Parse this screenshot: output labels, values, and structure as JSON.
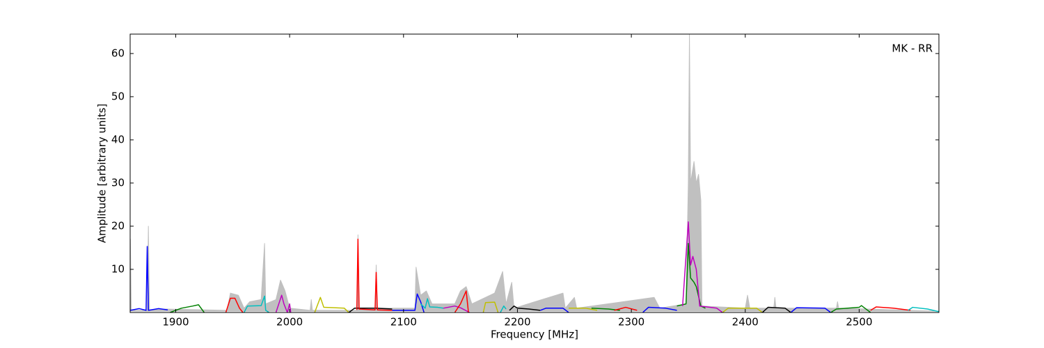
{
  "chart_data": {
    "type": "line",
    "annotation": "MK - RR",
    "x_label": "Frequency [MHz]",
    "y_label": "Amplitude [arbitrary units]",
    "xlim": [
      1860,
      2570
    ],
    "ylim": [
      0,
      64.5
    ],
    "xticks": [
      1900,
      2000,
      2100,
      2200,
      2300,
      2400,
      2500
    ],
    "yticks": [
      10,
      20,
      30,
      40,
      50,
      60
    ],
    "series": [
      {
        "color": "#c0c0c0",
        "style": "area",
        "x": [
          1860,
          1860.2,
          1861,
          1875,
          1876,
          1877,
          1890,
          1945,
          1948,
          1955,
          1960,
          1965,
          1975,
          1978,
          1979,
          1988,
          1992,
          1996,
          2000,
          2018,
          2019,
          2020,
          2059,
          2060,
          2061,
          2075,
          2076,
          2077,
          2110,
          2111,
          2115,
          2120,
          2125,
          2145,
          2150,
          2155,
          2160,
          2180,
          2187,
          2190,
          2195,
          2197,
          2240,
          2242,
          2250,
          2252,
          2320,
          2325,
          2348,
          2350,
          2351,
          2352,
          2355,
          2357,
          2359,
          2361,
          2362,
          2400,
          2402,
          2404,
          2425,
          2426,
          2427,
          2480,
          2481,
          2482,
          2570
        ],
        "values": [
          0.3,
          17,
          0.5,
          0.5,
          20,
          0.5,
          0.8,
          0.5,
          4.5,
          4,
          1,
          2.5,
          3,
          16,
          2,
          3,
          7.5,
          5,
          1,
          0.5,
          3,
          0.5,
          0.5,
          18,
          1,
          1,
          11,
          1,
          1,
          10.5,
          4,
          5,
          2,
          2,
          5,
          6,
          2,
          4.5,
          9.5,
          2,
          7,
          1,
          4.5,
          1,
          3.5,
          1,
          3.5,
          1,
          2,
          30,
          64.5,
          30,
          35,
          30,
          32,
          26,
          1.5,
          1,
          4,
          1,
          1,
          3.5,
          1,
          1,
          2.5,
          1,
          0.3
        ]
      },
      {
        "color": "#0000ff",
        "x": [
          1860,
          1868,
          1874,
          1875,
          1876,
          1885,
          1893
        ],
        "values": [
          0.5,
          0.9,
          0.5,
          15.3,
          0.5,
          0.9,
          0.6
        ]
      },
      {
        "color": "#008000",
        "x": [
          1895,
          1905,
          1915,
          1920,
          1925
        ],
        "values": [
          0,
          1,
          1.5,
          1.8,
          0
        ]
      },
      {
        "color": "#ff0000",
        "x": [
          1944,
          1948,
          1952,
          1956,
          1959
        ],
        "values": [
          0,
          3.3,
          3.3,
          1,
          0
        ]
      },
      {
        "color": "#00bfbf",
        "x": [
          1960,
          1963,
          1975,
          1978,
          1979,
          1982
        ],
        "values": [
          0,
          1.5,
          1.6,
          3.8,
          0.5,
          0
        ]
      },
      {
        "color": "#bf00bf",
        "x": [
          1988,
          1993,
          1995,
          1998,
          2000,
          2001
        ],
        "values": [
          0,
          4,
          2,
          0,
          2,
          0
        ]
      },
      {
        "color": "#bfbf00",
        "x": [
          2022,
          2027,
          2030,
          2048,
          2052
        ],
        "values": [
          0,
          3.5,
          1.2,
          1,
          0
        ]
      },
      {
        "color": "#000000",
        "x": [
          2052,
          2057,
          2075,
          2090
        ],
        "values": [
          0,
          1,
          1,
          0.8
        ]
      },
      {
        "color": "#ff0000",
        "x": [
          2059,
          2060,
          2061,
          2075,
          2076,
          2077,
          2090
        ],
        "values": [
          0.6,
          17,
          0.8,
          0.6,
          9.3,
          0.6,
          0.5
        ]
      },
      {
        "color": "#0000ff",
        "x": [
          2090,
          2110,
          2112,
          2115,
          2118
        ],
        "values": [
          0.5,
          0.5,
          4.3,
          2.5,
          0
        ]
      },
      {
        "color": "#00bfbf",
        "x": [
          2115,
          2119,
          2121,
          2123,
          2130,
          2135
        ],
        "values": [
          2,
          1,
          3.2,
          1.3,
          1.2,
          1
        ]
      },
      {
        "color": "#bf00bf",
        "x": [
          2135,
          2145,
          2150,
          2158
        ],
        "values": [
          1,
          1.5,
          1.1,
          0
        ]
      },
      {
        "color": "#ff0000",
        "x": [
          2145,
          2150,
          2155,
          2157
        ],
        "values": [
          0,
          2,
          5,
          0
        ]
      },
      {
        "color": "#bfbf00",
        "x": [
          2170,
          2172,
          2180,
          2183
        ],
        "values": [
          0,
          2.3,
          2.4,
          0
        ]
      },
      {
        "color": "#00bfbf",
        "x": [
          2185,
          2188,
          2190
        ],
        "values": [
          0,
          1.5,
          0.8
        ]
      },
      {
        "color": "#000000",
        "x": [
          2193,
          2197,
          2200,
          2210,
          2220
        ],
        "values": [
          0.5,
          1.5,
          1,
          0.8,
          0.5
        ]
      },
      {
        "color": "#0000ff",
        "x": [
          2220,
          2225,
          2240,
          2245
        ],
        "values": [
          0.5,
          1,
          1,
          0
        ]
      },
      {
        "color": "#bfbf00",
        "x": [
          2245,
          2260,
          2270
        ],
        "values": [
          1,
          1,
          0.5
        ]
      },
      {
        "color": "#008000",
        "x": [
          2265,
          2280,
          2290
        ],
        "values": [
          1,
          0.8,
          0.5
        ]
      },
      {
        "color": "#ff0000",
        "x": [
          2285,
          2295,
          2305
        ],
        "values": [
          0.5,
          1.2,
          0.5
        ]
      },
      {
        "color": "#0000ff",
        "x": [
          2310,
          2315,
          2330,
          2340
        ],
        "values": [
          0,
          1.2,
          1,
          0.5
        ]
      },
      {
        "color": "#008000",
        "x": [
          2340,
          2348,
          2350,
          2352,
          2355,
          2357,
          2361,
          2365
        ],
        "values": [
          1.5,
          2,
          16,
          8,
          7,
          6,
          1.5,
          1
        ]
      },
      {
        "color": "#bf00bf",
        "x": [
          2345,
          2350,
          2352,
          2354,
          2357,
          2360,
          2375,
          2380
        ],
        "values": [
          1.5,
          21,
          11,
          13,
          10,
          1.5,
          1,
          0
        ]
      },
      {
        "color": "#bfbf00",
        "x": [
          2380,
          2385,
          2410,
          2415
        ],
        "values": [
          0,
          1,
          1,
          0
        ]
      },
      {
        "color": "#000000",
        "x": [
          2415,
          2420,
          2435,
          2440
        ],
        "values": [
          0,
          1.2,
          1,
          0
        ]
      },
      {
        "color": "#0000ff",
        "x": [
          2440,
          2445,
          2470,
          2475
        ],
        "values": [
          0,
          1.1,
          1,
          0
        ]
      },
      {
        "color": "#008000",
        "x": [
          2475,
          2480,
          2500,
          2502,
          2510
        ],
        "values": [
          0,
          0.8,
          1.2,
          1.6,
          0
        ]
      },
      {
        "color": "#ff0000",
        "x": [
          2510,
          2515,
          2530,
          2545
        ],
        "values": [
          0.5,
          1.3,
          1,
          0.5
        ]
      },
      {
        "color": "#00bfbf",
        "x": [
          2543,
          2547,
          2560,
          2570
        ],
        "values": [
          0.5,
          1.2,
          0.8,
          0.2
        ]
      }
    ]
  }
}
